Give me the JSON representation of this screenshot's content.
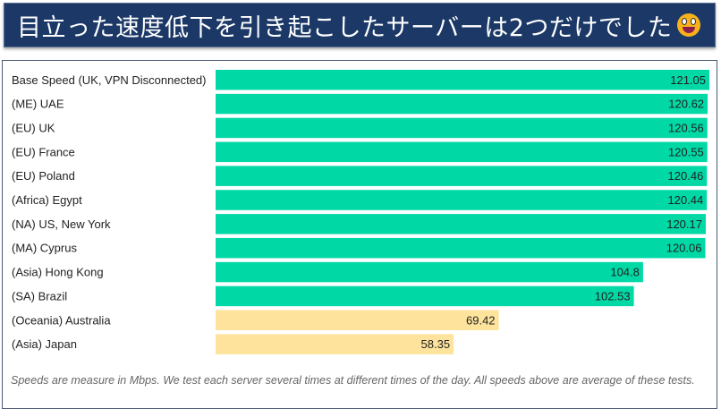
{
  "banner": {
    "title": "目立った速度低下を引き起こしたサーバーは2つだけでした",
    "emoji": "grinning-face-icon"
  },
  "chart_data": {
    "type": "bar",
    "orientation": "horizontal",
    "categories": [
      "Base Speed (UK, VPN Disconnected)",
      "(ME) UAE",
      "(EU) UK",
      "(EU) France",
      "(EU) Poland",
      "(Africa) Egypt",
      "(NA) US, New York",
      "(MA) Cyprus",
      "(Asia) Hong Kong",
      "(SA) Brazil",
      "(Oceania) Australia",
      "(Asia) Japan"
    ],
    "values": [
      121.05,
      120.62,
      120.56,
      120.55,
      120.46,
      120.44,
      120.17,
      120.06,
      104.8,
      102.53,
      69.42,
      58.35
    ],
    "value_labels": [
      "121.05",
      "120.62",
      "120.56",
      "120.55",
      "120.46",
      "120.44",
      "120.17",
      "120.06",
      "104.8",
      "102.53",
      "69.42",
      "58.35"
    ],
    "bar_colors": [
      "#00d9a6",
      "#00d9a6",
      "#00d9a6",
      "#00d9a6",
      "#00d9a6",
      "#00d9a6",
      "#00d9a6",
      "#00d9a6",
      "#00d9a6",
      "#00d9a6",
      "#fde39b",
      "#fde39b"
    ],
    "xlim": [
      0,
      121.05
    ],
    "grid": false
  },
  "footnote": "Speeds are measure in Mbps. We test each server several times at different times of the day. All speeds above are average of these tests."
}
